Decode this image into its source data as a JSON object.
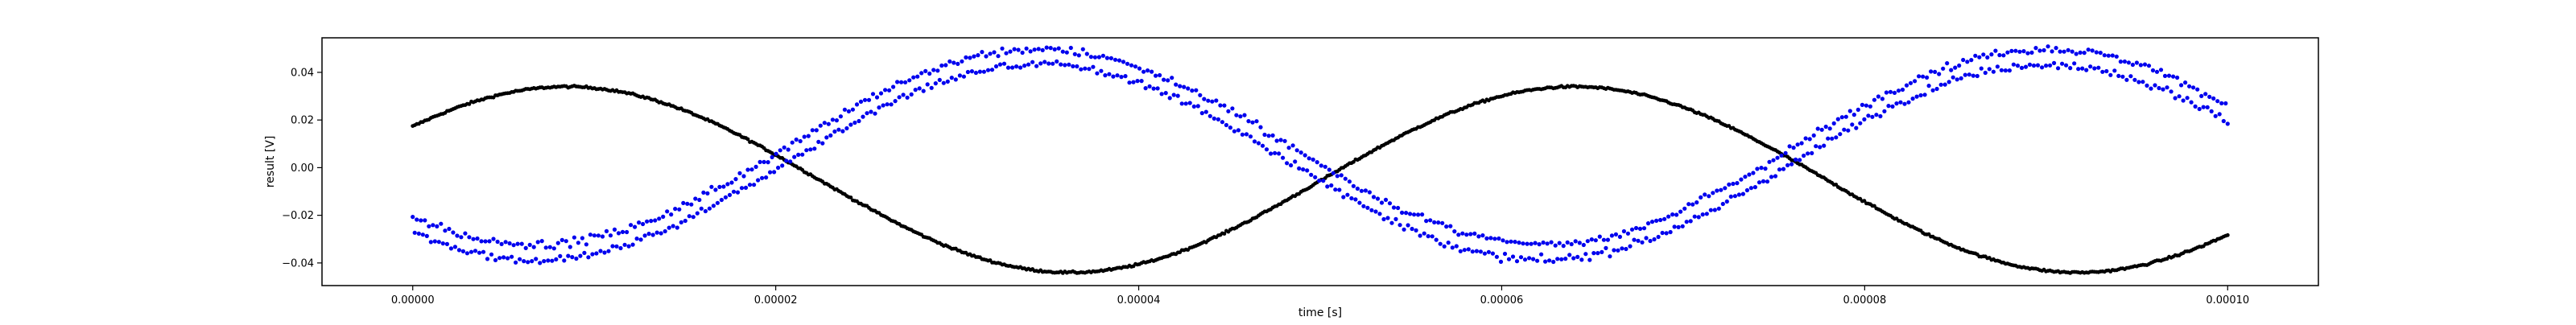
{
  "chart_data": {
    "type": "scatter",
    "title": "",
    "xlabel": "time [s]",
    "ylabel": "result [V]",
    "xlim": [
      -5e-06,
      0.000105
    ],
    "ylim": [
      -0.0495,
      0.0545
    ],
    "grid": false,
    "xticks": [
      {
        "value": 0.0,
        "label": "0.00000"
      },
      {
        "value": 2e-05,
        "label": "0.00002"
      },
      {
        "value": 4e-05,
        "label": "0.00004"
      },
      {
        "value": 6e-05,
        "label": "0.00006"
      },
      {
        "value": 8e-05,
        "label": "0.00008"
      },
      {
        "value": 0.0001,
        "label": "0.00010"
      }
    ],
    "yticks": [
      {
        "value": -0.04,
        "label": "−0.04"
      },
      {
        "value": -0.02,
        "label": "−0.02"
      },
      {
        "value": 0.0,
        "label": "0.00"
      },
      {
        "value": 0.02,
        "label": "0.02"
      },
      {
        "value": 0.04,
        "label": "0.04"
      }
    ],
    "series": [
      {
        "color": "#000000",
        "marker": "dot",
        "x_range": [
          0.0,
          0.0001
        ],
        "count": 900,
        "model": "sine",
        "offset": -0.005,
        "amplitude": 0.039,
        "period": 5.55e-05,
        "phase_peak_at": 8.5e-06,
        "noise": 0.0004
      },
      {
        "color": "#0000ee",
        "marker": "dot",
        "x_range": [
          0.0,
          0.0001
        ],
        "count": 900,
        "model": "sine",
        "offset": 0.0055,
        "amplitude": 0.041,
        "period": 5.55e-05,
        "phase_peak_at": 3.45e-05,
        "band_split": 0.0065,
        "noise": 0.0016
      }
    ]
  }
}
